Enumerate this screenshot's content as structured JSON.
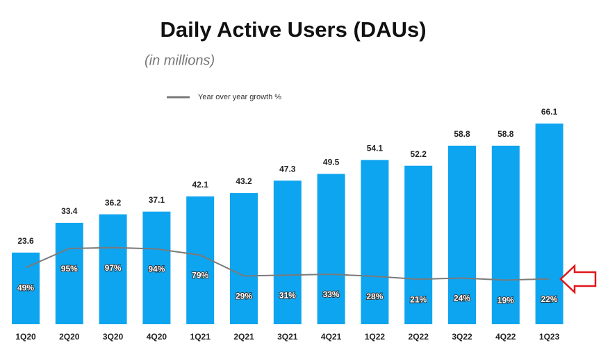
{
  "chart_data": {
    "type": "bar",
    "title": "Daily Active Users (DAUs)",
    "subtitle": "(in millions)",
    "categories": [
      "1Q20",
      "2Q20",
      "3Q20",
      "4Q20",
      "1Q21",
      "2Q21",
      "3Q21",
      "4Q21",
      "1Q22",
      "2Q22",
      "3Q22",
      "4Q22",
      "1Q23"
    ],
    "values": [
      23.6,
      33.4,
      36.2,
      37.1,
      42.1,
      43.2,
      47.3,
      49.5,
      54.1,
      52.2,
      58.8,
      58.8,
      66.1
    ],
    "color": "#0ea5f0",
    "ylim": [
      0,
      75
    ],
    "series": [
      {
        "name": "Year over year growth %",
        "color": "#7a7a7a",
        "type": "line",
        "axis": "y2",
        "values": [
          49,
          95,
          97,
          94,
          79,
          29,
          31,
          33,
          28,
          21,
          24,
          19,
          22
        ],
        "value_labels": [
          "49%",
          "95%",
          "97%",
          "94%",
          "79%",
          "29%",
          "31%",
          "33%",
          "28%",
          "21%",
          "24%",
          "19%",
          "22%"
        ]
      }
    ],
    "y2lim": [
      -87,
      460
    ],
    "grid": false
  }
}
